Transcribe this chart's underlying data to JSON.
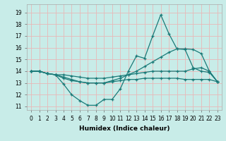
{
  "title": "",
  "xlabel": "Humidex (Indice chaleur)",
  "ylabel": "",
  "bg_color": "#c8ece8",
  "grid_color": "#e8b8b8",
  "line_color": "#1a7a78",
  "xlim": [
    -0.5,
    23.5
  ],
  "ylim": [
    10.7,
    19.7
  ],
  "yticks": [
    11,
    12,
    13,
    14,
    15,
    16,
    17,
    18,
    19
  ],
  "xticks": [
    0,
    1,
    2,
    3,
    4,
    5,
    6,
    7,
    8,
    9,
    10,
    11,
    12,
    13,
    14,
    15,
    16,
    17,
    18,
    19,
    20,
    21,
    22,
    23
  ],
  "series": [
    {
      "x": [
        0,
        1,
        2,
        3,
        4,
        5,
        6,
        7,
        8,
        9,
        10,
        11,
        12,
        13,
        14,
        15,
        16,
        17,
        18,
        19,
        20,
        21,
        22,
        23
      ],
      "y": [
        14,
        14,
        13.8,
        13.7,
        12.9,
        12.0,
        11.5,
        11.1,
        11.1,
        11.6,
        11.6,
        12.5,
        14.0,
        15.3,
        15.1,
        17.0,
        18.8,
        17.2,
        15.9,
        15.85,
        14.3,
        14.0,
        13.9,
        13.1
      ]
    },
    {
      "x": [
        0,
        1,
        2,
        3,
        4,
        5,
        6,
        7,
        8,
        9,
        10,
        11,
        12,
        13,
        14,
        15,
        16,
        17,
        18,
        19,
        20,
        21,
        22,
        23
      ],
      "y": [
        14,
        14,
        13.8,
        13.7,
        13.7,
        13.6,
        13.5,
        13.4,
        13.4,
        13.4,
        13.5,
        13.6,
        13.7,
        13.8,
        13.9,
        14.0,
        14.0,
        14.0,
        14.0,
        14.0,
        14.2,
        14.3,
        14.0,
        13.1
      ]
    },
    {
      "x": [
        0,
        1,
        2,
        3,
        4,
        5,
        6,
        7,
        8,
        9,
        10,
        11,
        12,
        13,
        14,
        15,
        16,
        17,
        18,
        19,
        20,
        21,
        22,
        23
      ],
      "y": [
        14,
        14,
        13.8,
        13.7,
        13.5,
        13.3,
        13.1,
        13.0,
        13.0,
        13.0,
        13.2,
        13.4,
        13.7,
        14.0,
        14.4,
        14.8,
        15.2,
        15.6,
        15.9,
        15.9,
        15.85,
        15.5,
        14.0,
        13.1
      ]
    },
    {
      "x": [
        0,
        1,
        2,
        3,
        4,
        5,
        6,
        7,
        8,
        9,
        10,
        11,
        12,
        13,
        14,
        15,
        16,
        17,
        18,
        19,
        20,
        21,
        22,
        23
      ],
      "y": [
        14,
        14,
        13.8,
        13.7,
        13.4,
        13.2,
        13.1,
        13.0,
        13.0,
        13.0,
        13.1,
        13.2,
        13.3,
        13.3,
        13.4,
        13.4,
        13.4,
        13.4,
        13.4,
        13.3,
        13.3,
        13.3,
        13.3,
        13.1
      ]
    }
  ]
}
